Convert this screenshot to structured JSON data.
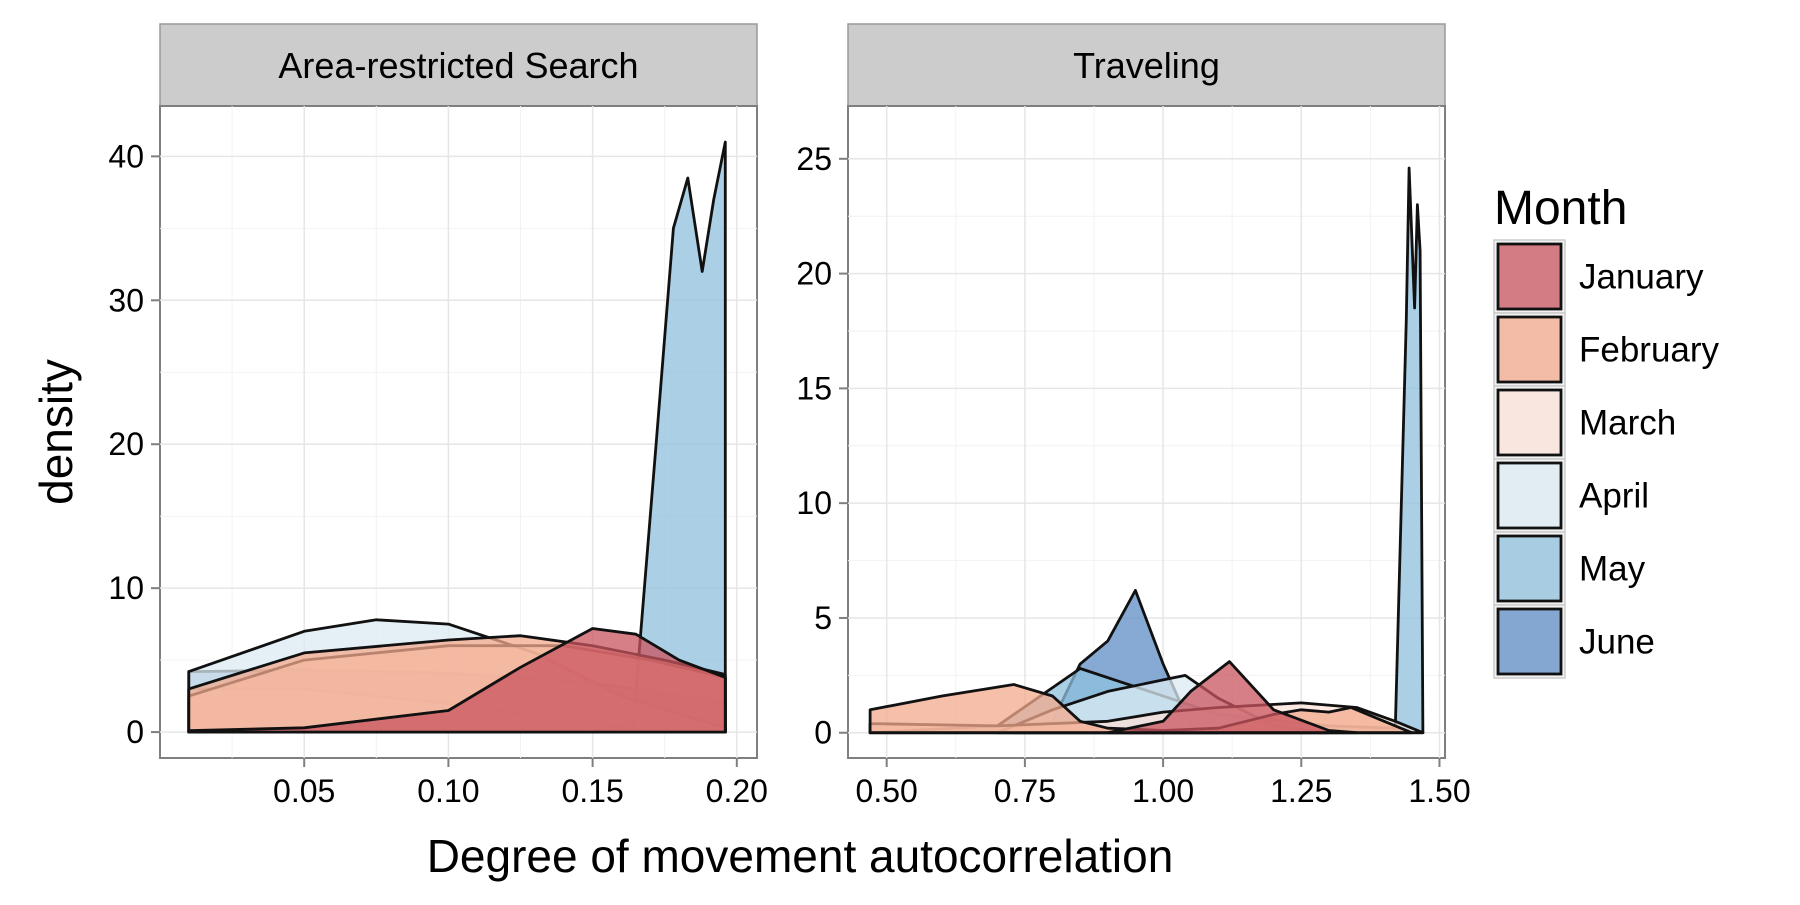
{
  "chart_data": [
    {
      "type": "area",
      "panel_title": "Area-restricted Search",
      "xlim": [
        0.0,
        0.207
      ],
      "ylim": [
        -1.8,
        43.5
      ],
      "xticks": [
        0.05,
        0.1,
        0.15,
        0.2
      ],
      "xtick_labels": [
        "0.05",
        "0.10",
        "0.15",
        "0.20"
      ],
      "yticks": [
        0,
        10,
        20,
        30,
        40
      ],
      "ytick_labels": [
        "0",
        "10",
        "20",
        "30",
        "40"
      ],
      "grid": true,
      "series": [
        {
          "name": "June",
          "x": [
            0.01,
            0.05,
            0.1,
            0.15,
            0.196
          ],
          "y": [
            4.2,
            4.3,
            4.1,
            3.4,
            2.1
          ]
        },
        {
          "name": "May",
          "x": [
            0.01,
            0.05,
            0.1,
            0.15,
            0.164,
            0.172,
            0.178,
            0.183,
            0.188,
            0.192,
            0.196
          ],
          "y": [
            3.0,
            3.0,
            2.0,
            0.5,
            0.3,
            20.0,
            35.0,
            38.5,
            32.0,
            37.0,
            41.0
          ]
        },
        {
          "name": "April",
          "x": [
            0.01,
            0.05,
            0.075,
            0.1,
            0.13,
            0.16,
            0.196
          ],
          "y": [
            4.2,
            7.0,
            7.8,
            7.5,
            5.5,
            2.5,
            0.3
          ]
        },
        {
          "name": "March",
          "x": [
            0.01,
            0.05,
            0.1,
            0.14,
            0.17,
            0.196
          ],
          "y": [
            2.5,
            5.0,
            6.0,
            6.0,
            5.0,
            3.8
          ]
        },
        {
          "name": "February",
          "x": [
            0.01,
            0.05,
            0.1,
            0.125,
            0.15,
            0.175,
            0.196
          ],
          "y": [
            3.0,
            5.5,
            6.4,
            6.7,
            6.0,
            5.0,
            4.0
          ]
        },
        {
          "name": "January",
          "x": [
            0.01,
            0.05,
            0.1,
            0.125,
            0.15,
            0.165,
            0.18,
            0.196
          ],
          "y": [
            0.1,
            0.3,
            1.5,
            4.5,
            7.2,
            6.8,
            5.0,
            3.8
          ]
        }
      ]
    },
    {
      "type": "area",
      "panel_title": "Traveling",
      "xlim": [
        0.43,
        1.51
      ],
      "ylim": [
        -1.1,
        27.3
      ],
      "xticks": [
        0.5,
        0.75,
        1.0,
        1.25,
        1.5
      ],
      "xtick_labels": [
        "0.50",
        "0.75",
        "1.00",
        "1.25",
        "1.50"
      ],
      "yticks": [
        0,
        5,
        10,
        15,
        20,
        25
      ],
      "ytick_labels": [
        "0",
        "5",
        "10",
        "15",
        "20",
        "25"
      ],
      "grid": true,
      "series": [
        {
          "name": "June",
          "x": [
            0.73,
            0.8,
            0.85,
            0.9,
            0.95,
            1.0,
            1.05,
            1.1
          ],
          "y": [
            0.0,
            0.5,
            3.0,
            4.0,
            6.2,
            3.0,
            0.3,
            0.0
          ]
        },
        {
          "name": "May",
          "x": [
            0.47,
            0.7,
            0.85,
            0.95,
            1.1,
            1.3,
            1.42,
            1.44,
            1.445,
            1.455,
            1.46,
            1.465,
            1.47
          ],
          "y": [
            0.0,
            0.3,
            2.8,
            2.0,
            0.8,
            0.3,
            0.2,
            18.0,
            24.6,
            18.5,
            23.0,
            21.0,
            0.0
          ]
        },
        {
          "name": "April",
          "x": [
            0.7,
            0.8,
            0.9,
            1.0,
            1.04,
            1.1,
            1.2,
            1.3
          ],
          "y": [
            0.0,
            1.0,
            1.8,
            2.3,
            2.5,
            1.5,
            0.3,
            0.0
          ]
        },
        {
          "name": "March",
          "x": [
            0.47,
            0.7,
            0.9,
            1.0,
            1.1,
            1.25,
            1.35,
            1.42,
            1.47
          ],
          "y": [
            0.4,
            0.3,
            0.5,
            0.9,
            1.1,
            1.3,
            1.1,
            0.5,
            0.0
          ]
        },
        {
          "name": "February",
          "x": [
            0.47,
            0.6,
            0.73,
            0.8,
            0.85,
            0.9,
            1.0,
            1.1,
            1.2,
            1.25,
            1.3,
            1.34,
            1.4,
            1.45
          ],
          "y": [
            1.0,
            1.6,
            2.1,
            1.6,
            0.5,
            0.2,
            0.1,
            0.2,
            0.8,
            1.0,
            0.9,
            1.1,
            0.5,
            0.0
          ]
        },
        {
          "name": "January",
          "x": [
            0.9,
            1.0,
            1.05,
            1.12,
            1.2,
            1.3,
            1.35
          ],
          "y": [
            0.0,
            0.5,
            1.8,
            3.1,
            1.0,
            0.1,
            0.0
          ]
        }
      ]
    }
  ],
  "xlabel": "Degree of movement autocorrelation",
  "ylabel": "density",
  "legend": {
    "title": "Month",
    "placement": "right",
    "items": [
      {
        "label": "January",
        "color": "#C9545F"
      },
      {
        "label": "February",
        "color": "#F3A98C"
      },
      {
        "label": "March",
        "color": "#FBE2D7"
      },
      {
        "label": "April",
        "color": "#DCEBF3"
      },
      {
        "label": "May",
        "color": "#8FC0DE"
      },
      {
        "label": "June",
        "color": "#5E8DC6"
      }
    ]
  },
  "colors": {
    "January": "#C9545F",
    "February": "#F3A98C",
    "March": "#FBE2D7",
    "April": "#DCEBF3",
    "May": "#8FC0DE",
    "June": "#5E8DC6"
  },
  "fill_alpha": 0.75
}
